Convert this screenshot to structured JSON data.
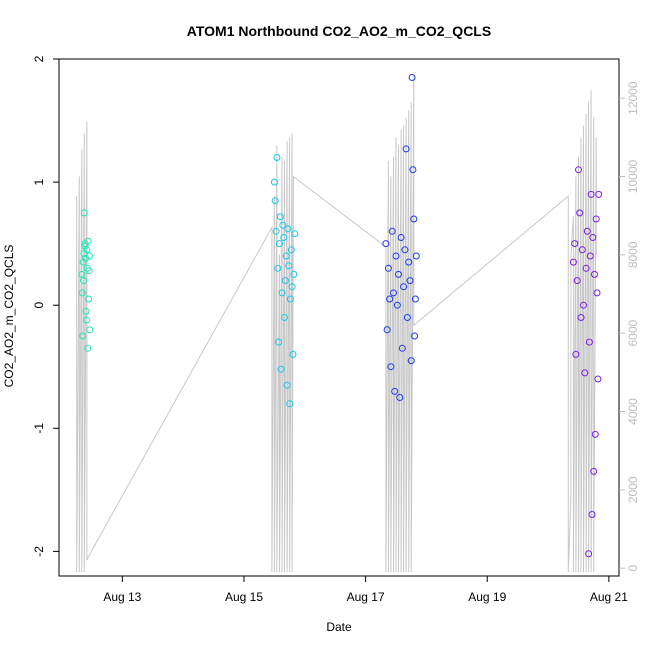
{
  "chart_data": {
    "type": "scatter",
    "title": "ATOM1 Northbound CO2_AO2_m_CO2_QCLS",
    "xlabel": "Date",
    "ylabel": "CO2_AO2_m_CO2_QCLS",
    "xlim": [
      "2016-08-11T23:00",
      "2016-08-21T04:00"
    ],
    "ylim": [
      -2.2,
      2.0
    ],
    "y2lim": [
      -200,
      13000
    ],
    "x_ticks": [
      {
        "x": "2016-08-13T00:00",
        "label": "Aug 13"
      },
      {
        "x": "2016-08-15T00:00",
        "label": "Aug 15"
      },
      {
        "x": "2016-08-17T00:00",
        "label": "Aug 17"
      },
      {
        "x": "2016-08-19T00:00",
        "label": "Aug 19"
      },
      {
        "x": "2016-08-21T00:00",
        "label": "Aug 21"
      }
    ],
    "y_ticks": [
      {
        "y": -2,
        "label": "-2"
      },
      {
        "y": -1,
        "label": "-1"
      },
      {
        "y": 0,
        "label": "0"
      },
      {
        "y": 1,
        "label": "1"
      },
      {
        "y": 2,
        "label": "2"
      }
    ],
    "y2_ticks": [
      {
        "y": 0,
        "label": "0"
      },
      {
        "y": 2000,
        "label": "2000"
      },
      {
        "y": 4000,
        "label": "4000"
      },
      {
        "y": 6000,
        "label": "6000"
      },
      {
        "y": 8000,
        "label": "8000"
      },
      {
        "y": 10000,
        "label": "10000"
      },
      {
        "y": 12000,
        "label": "12000"
      }
    ],
    "grid": false,
    "legend": "none",
    "colors": {
      "altitude_line": "#c8c8c8",
      "points": [
        "#1de9b6",
        "#18c8e8",
        "#1f3cf0",
        "#7a1fe8"
      ],
      "right_axis": "#bdbdbd"
    },
    "series": [
      {
        "x": [
          "2016-08-12T08:00",
          "2016-08-12T08:10",
          "2016-08-12T08:20",
          "2016-08-12T08:30",
          "2016-08-12T08:40",
          "2016-08-12T08:50",
          "2016-08-12T09:00",
          "2016-08-12T09:10",
          "2016-08-12T09:20",
          "2016-08-12T09:30",
          "2016-08-12T09:40",
          "2016-08-12T09:50",
          "2016-08-12T10:00",
          "2016-08-12T10:10",
          "2016-08-12T10:20",
          "2016-08-12T10:30",
          "2016-08-12T10:40",
          "2016-08-12T10:50",
          "2016-08-12T11:00",
          "2016-08-12T11:10"
        ],
        "y": [
          0.25,
          0.1,
          -0.25,
          0.35,
          0.2,
          0.42,
          0.75,
          0.48,
          0.5,
          0.38,
          -0.05,
          -0.12,
          0.45,
          0.3,
          -0.35,
          0.52,
          0.05,
          0.28,
          0.4,
          -0.2
        ]
      },
      {
        "x": [
          "2016-08-15T12:00",
          "2016-08-15T12:20",
          "2016-08-15T12:40",
          "2016-08-15T13:00",
          "2016-08-15T13:20",
          "2016-08-15T13:40",
          "2016-08-15T14:00",
          "2016-08-15T14:20",
          "2016-08-15T14:40",
          "2016-08-15T15:00",
          "2016-08-15T15:20",
          "2016-08-15T15:40",
          "2016-08-15T16:00",
          "2016-08-15T16:20",
          "2016-08-15T16:40",
          "2016-08-15T17:00",
          "2016-08-15T17:20",
          "2016-08-15T17:40",
          "2016-08-15T18:00",
          "2016-08-15T18:20",
          "2016-08-15T18:40",
          "2016-08-15T19:00",
          "2016-08-15T19:20",
          "2016-08-15T19:40",
          "2016-08-15T20:00"
        ],
        "y": [
          1.0,
          0.85,
          0.6,
          1.2,
          0.3,
          -0.3,
          0.5,
          0.72,
          -0.52,
          0.1,
          0.65,
          0.55,
          -0.1,
          0.2,
          0.4,
          -0.65,
          0.62,
          0.32,
          -0.8,
          0.05,
          0.45,
          0.15,
          -0.4,
          0.25,
          0.58
        ]
      },
      {
        "x": [
          "2016-08-17T08:00",
          "2016-08-17T08:30",
          "2016-08-17T09:00",
          "2016-08-17T09:30",
          "2016-08-17T10:00",
          "2016-08-17T10:30",
          "2016-08-17T11:00",
          "2016-08-17T11:30",
          "2016-08-17T12:00",
          "2016-08-17T12:30",
          "2016-08-17T13:00",
          "2016-08-17T13:30",
          "2016-08-17T14:00",
          "2016-08-17T14:30",
          "2016-08-17T15:00",
          "2016-08-17T15:30",
          "2016-08-17T16:00",
          "2016-08-17T16:30",
          "2016-08-17T17:00",
          "2016-08-17T17:30",
          "2016-08-17T18:00",
          "2016-08-17T18:20",
          "2016-08-17T18:40",
          "2016-08-17T19:00",
          "2016-08-17T19:20",
          "2016-08-17T19:40",
          "2016-08-17T20:00"
        ],
        "y": [
          0.5,
          -0.2,
          0.3,
          0.05,
          -0.5,
          0.6,
          0.1,
          -0.7,
          0.4,
          0.0,
          0.25,
          -0.75,
          0.55,
          -0.35,
          0.15,
          0.45,
          1.27,
          -0.1,
          0.35,
          0.2,
          -0.45,
          1.85,
          1.1,
          0.7,
          -0.25,
          0.05,
          0.4
        ]
      },
      {
        "x": [
          "2016-08-20T10:00",
          "2016-08-20T10:30",
          "2016-08-20T11:00",
          "2016-08-20T11:30",
          "2016-08-20T12:00",
          "2016-08-20T12:30",
          "2016-08-20T13:00",
          "2016-08-20T13:30",
          "2016-08-20T14:00",
          "2016-08-20T14:30",
          "2016-08-20T15:00",
          "2016-08-20T15:30",
          "2016-08-20T16:00",
          "2016-08-20T16:20",
          "2016-08-20T16:40",
          "2016-08-20T17:00",
          "2016-08-20T17:20",
          "2016-08-20T17:40",
          "2016-08-20T18:00",
          "2016-08-20T18:20",
          "2016-08-20T18:40",
          "2016-08-20T19:00",
          "2016-08-20T19:20",
          "2016-08-20T19:40",
          "2016-08-20T20:00"
        ],
        "y": [
          0.35,
          0.5,
          -0.4,
          0.2,
          1.1,
          0.75,
          -0.1,
          0.45,
          0.0,
          -0.55,
          0.3,
          0.6,
          -2.02,
          -0.3,
          0.4,
          0.9,
          -1.7,
          0.55,
          -1.35,
          0.25,
          -1.05,
          0.7,
          0.1,
          -0.6,
          0.9
        ]
      }
    ],
    "altitude_path": [
      [
        "2016-08-12T06:00",
        9500
      ],
      [
        "2016-08-12T06:00",
        -100
      ],
      [
        "2016-08-12T07:00",
        10000
      ],
      [
        "2016-08-12T07:00",
        -100
      ],
      [
        "2016-08-12T08:00",
        10700
      ],
      [
        "2016-08-12T08:00",
        -100
      ],
      [
        "2016-08-12T09:00",
        11100
      ],
      [
        "2016-08-12T09:00",
        -100
      ],
      [
        "2016-08-12T10:00",
        11400
      ],
      [
        "2016-08-12T10:00",
        200
      ],
      [
        "2016-08-12T10:30",
        280
      ],
      [
        "2016-08-15T11:00",
        8700
      ],
      [
        "2016-08-15T11:00",
        -100
      ],
      [
        "2016-08-15T12:00",
        9500
      ],
      [
        "2016-08-15T12:00",
        -100
      ],
      [
        "2016-08-15T13:00",
        10800
      ],
      [
        "2016-08-15T13:00",
        -100
      ],
      [
        "2016-08-15T14:00",
        8000
      ],
      [
        "2016-08-15T14:00",
        -100
      ],
      [
        "2016-08-15T15:00",
        10500
      ],
      [
        "2016-08-15T15:00",
        -100
      ],
      [
        "2016-08-15T16:00",
        10400
      ],
      [
        "2016-08-15T16:00",
        -100
      ],
      [
        "2016-08-15T17:00",
        10900
      ],
      [
        "2016-08-15T17:00",
        -100
      ],
      [
        "2016-08-15T18:00",
        11000
      ],
      [
        "2016-08-15T18:00",
        -100
      ],
      [
        "2016-08-15T19:00",
        11100
      ],
      [
        "2016-08-15T19:00",
        -100
      ],
      [
        "2016-08-15T19:30",
        10000
      ],
      [
        "2016-08-17T08:00",
        8200
      ],
      [
        "2016-08-17T08:00",
        -100
      ],
      [
        "2016-08-17T09:00",
        10400
      ],
      [
        "2016-08-17T09:00",
        -100
      ],
      [
        "2016-08-17T10:00",
        10000
      ],
      [
        "2016-08-17T10:00",
        -100
      ],
      [
        "2016-08-17T11:00",
        10500
      ],
      [
        "2016-08-17T11:00",
        -100
      ],
      [
        "2016-08-17T12:00",
        11000
      ],
      [
        "2016-08-17T12:00",
        -100
      ],
      [
        "2016-08-17T13:00",
        10800
      ],
      [
        "2016-08-17T13:00",
        -100
      ],
      [
        "2016-08-17T14:00",
        11200
      ],
      [
        "2016-08-17T14:00",
        -100
      ],
      [
        "2016-08-17T15:00",
        11300
      ],
      [
        "2016-08-17T15:00",
        -100
      ],
      [
        "2016-08-17T16:00",
        11500
      ],
      [
        "2016-08-17T16:00",
        -100
      ],
      [
        "2016-08-17T17:00",
        11700
      ],
      [
        "2016-08-17T17:00",
        -100
      ],
      [
        "2016-08-17T18:00",
        11900
      ],
      [
        "2016-08-17T18:00",
        -100
      ],
      [
        "2016-08-17T19:00",
        12600
      ],
      [
        "2016-08-17T19:00",
        6200
      ],
      [
        "2016-08-20T08:00",
        9500
      ],
      [
        "2016-08-20T08:00",
        -100
      ],
      [
        "2016-08-20T09:00",
        1800
      ],
      [
        "2016-08-20T09:00",
        8000
      ],
      [
        "2016-08-20T10:00",
        9000
      ],
      [
        "2016-08-20T10:00",
        -100
      ],
      [
        "2016-08-20T11:00",
        10000
      ],
      [
        "2016-08-20T11:00",
        -100
      ],
      [
        "2016-08-20T12:00",
        10500
      ],
      [
        "2016-08-20T12:00",
        -100
      ],
      [
        "2016-08-20T13:00",
        11000
      ],
      [
        "2016-08-20T13:00",
        -100
      ],
      [
        "2016-08-20T14:00",
        11300
      ],
      [
        "2016-08-20T14:00",
        -100
      ],
      [
        "2016-08-20T15:00",
        11600
      ],
      [
        "2016-08-20T15:00",
        -100
      ],
      [
        "2016-08-20T16:00",
        11900
      ],
      [
        "2016-08-20T16:00",
        -100
      ],
      [
        "2016-08-20T17:00",
        12200
      ],
      [
        "2016-08-20T17:00",
        -100
      ],
      [
        "2016-08-20T18:00",
        11500
      ],
      [
        "2016-08-20T18:00",
        -100
      ],
      [
        "2016-08-20T19:00",
        11000
      ],
      [
        "2016-08-20T19:00",
        8000
      ]
    ]
  }
}
